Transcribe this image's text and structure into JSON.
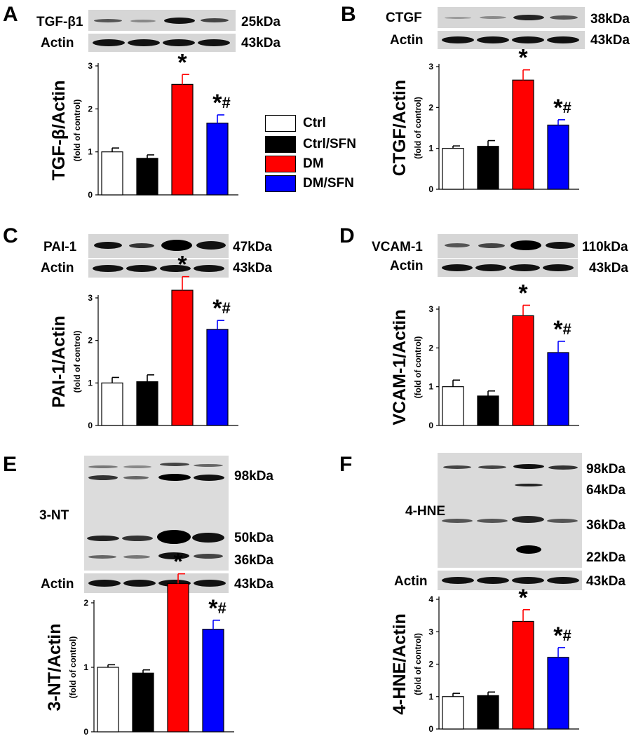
{
  "colors": {
    "ctrl": "#ffffff",
    "ctrl_sfn": "#000000",
    "dm": "#ff0000",
    "dm_sfn": "#0000ff"
  },
  "legend": [
    {
      "label": "Ctrl",
      "color": "#ffffff"
    },
    {
      "label": "Ctrl/SFN",
      "color": "#000000"
    },
    {
      "label": "DM",
      "color": "#ff0000"
    },
    {
      "label": "DM/SFN",
      "color": "#0000ff"
    }
  ],
  "panels": [
    {
      "label": "A",
      "blots": [
        {
          "name": "TGF-β1",
          "size": "25kDa"
        },
        {
          "name": "Actin",
          "size": "43kDa"
        }
      ]
    },
    {
      "label": "B",
      "blots": [
        {
          "name": "CTGF",
          "size": "38kDa"
        },
        {
          "name": "Actin",
          "size": "43kDa"
        }
      ]
    },
    {
      "label": "C",
      "blots": [
        {
          "name": "PAI-1",
          "size": "47kDa"
        },
        {
          "name": "Actin",
          "size": "43kDa"
        }
      ]
    },
    {
      "label": "D",
      "blots": [
        {
          "name": "VCAM-1",
          "size": "110kDa"
        },
        {
          "name": "Actin",
          "size": "43kDa"
        }
      ]
    },
    {
      "label": "E",
      "blots": [
        {
          "name": "3-NT",
          "sizes": [
            "98kDa",
            "50kDa",
            "36kDa"
          ]
        },
        {
          "name": "Actin",
          "size": "43kDa"
        }
      ]
    },
    {
      "label": "F",
      "blots": [
        {
          "name": "4-HNE",
          "sizes": [
            "98kDa",
            "64kDa",
            "36kDa",
            "22kDa"
          ]
        },
        {
          "name": "Actin",
          "size": "43kDa"
        }
      ]
    }
  ],
  "chart_data": [
    {
      "type": "bar",
      "panel": "A",
      "ylabel": "TGF-β/Actin",
      "ylabel_sub": "(fold of control)",
      "ylim": [
        0,
        3
      ],
      "yticks": [
        0,
        1,
        2,
        3
      ],
      "categories": [
        "Ctrl",
        "Ctrl/SFN",
        "DM",
        "DM/SFN"
      ],
      "values": [
        1.0,
        0.85,
        2.57,
        1.67
      ],
      "errors": [
        0.09,
        0.08,
        0.23,
        0.19
      ],
      "annotations": [
        "",
        "",
        "*",
        "*#"
      ]
    },
    {
      "type": "bar",
      "panel": "B",
      "ylabel": "CTGF/Actin",
      "ylabel_sub": "(fold of control)",
      "ylim": [
        0,
        3
      ],
      "yticks": [
        0,
        1,
        2,
        3
      ],
      "categories": [
        "Ctrl",
        "Ctrl/SFN",
        "DM",
        "DM/SFN"
      ],
      "values": [
        1.0,
        1.05,
        2.67,
        1.57
      ],
      "errors": [
        0.06,
        0.14,
        0.25,
        0.13
      ],
      "annotations": [
        "",
        "",
        "*",
        "*#"
      ]
    },
    {
      "type": "bar",
      "panel": "C",
      "ylabel": "PAI-1/Actin",
      "ylabel_sub": "(fold of control)",
      "ylim": [
        0,
        3
      ],
      "yticks": [
        0,
        1,
        2,
        3
      ],
      "categories": [
        "Ctrl",
        "Ctrl/SFN",
        "DM",
        "DM/SFN"
      ],
      "values": [
        1.0,
        1.03,
        3.18,
        2.26
      ],
      "errors": [
        0.13,
        0.16,
        0.32,
        0.21
      ],
      "annotations": [
        "",
        "",
        "*",
        "*#"
      ]
    },
    {
      "type": "bar",
      "panel": "D",
      "ylabel": "VCAM-1/Actin",
      "ylabel_sub": "(fold of control)",
      "ylim": [
        0,
        3
      ],
      "yticks": [
        0,
        1,
        2,
        3
      ],
      "categories": [
        "Ctrl",
        "Ctrl/SFN",
        "DM",
        "DM/SFN"
      ],
      "values": [
        1.0,
        0.76,
        2.83,
        1.88
      ],
      "errors": [
        0.17,
        0.13,
        0.27,
        0.29
      ],
      "annotations": [
        "",
        "",
        "*",
        "*#"
      ]
    },
    {
      "type": "bar",
      "panel": "E",
      "ylabel": "3-NT/Actin",
      "ylabel_sub": "(fold of control)",
      "ylim": [
        0,
        2
      ],
      "yticks": [
        0,
        1,
        2
      ],
      "categories": [
        "Ctrl",
        "Ctrl/SFN",
        "DM",
        "DM/SFN"
      ],
      "values": [
        1.0,
        0.91,
        2.3,
        1.59
      ],
      "errors": [
        0.04,
        0.05,
        0.15,
        0.14
      ],
      "annotations": [
        "",
        "",
        "*",
        "*#"
      ]
    },
    {
      "type": "bar",
      "panel": "F",
      "ylabel": "4-HNE/Actin",
      "ylabel_sub": "(fold of control)",
      "ylim": [
        0,
        4
      ],
      "yticks": [
        0,
        1,
        2,
        3,
        4
      ],
      "categories": [
        "Ctrl",
        "Ctrl/SFN",
        "DM",
        "DM/SFN"
      ],
      "values": [
        1.0,
        1.03,
        3.32,
        2.21
      ],
      "errors": [
        0.1,
        0.11,
        0.36,
        0.3
      ],
      "annotations": [
        "",
        "",
        "*",
        "*#"
      ]
    }
  ]
}
